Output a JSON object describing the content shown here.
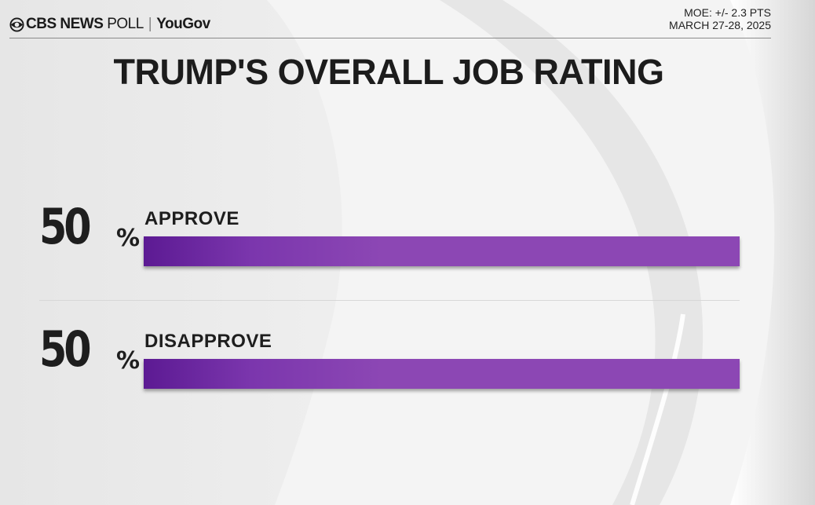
{
  "header": {
    "brand_cbs": "CBS NEWS",
    "brand_poll": "POLL",
    "brand_yougov": "YouGov",
    "moe": "MOE: +/- 2.3 PTS",
    "date": "MARCH 27-28, 2025"
  },
  "chart_data": {
    "type": "bar",
    "title": "TRUMP'S OVERALL JOB RATING",
    "categories": [
      "APPROVE",
      "DISAPPROVE"
    ],
    "values": [
      50,
      50
    ],
    "value_labels": [
      "50",
      "50"
    ],
    "unit": "%",
    "ylim": [
      0,
      50
    ],
    "bar_color": "#8c47b4",
    "bar_color_start": "#5c1a93"
  }
}
